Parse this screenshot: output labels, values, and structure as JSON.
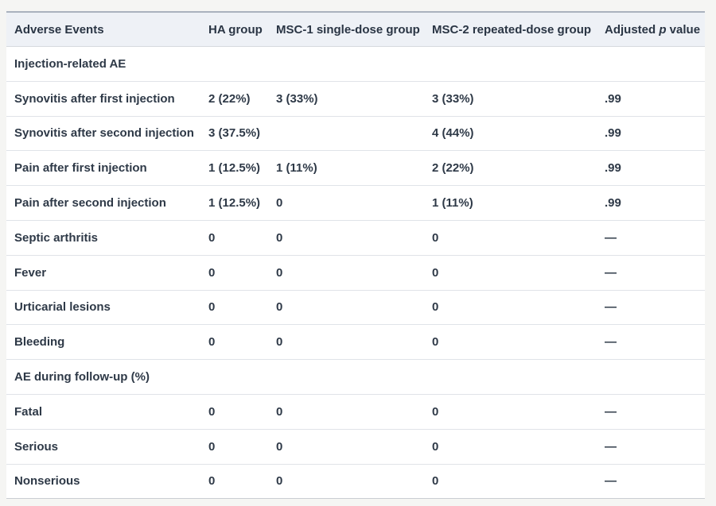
{
  "table": {
    "columns": [
      {
        "label": "Adverse Events"
      },
      {
        "label": "HA group"
      },
      {
        "label": "MSC-1 single-dose group"
      },
      {
        "label": "MSC-2 repeated-dose group"
      },
      {
        "label_pre": "Adjusted ",
        "label_italic": "p",
        "label_post": " value"
      }
    ],
    "rows": [
      {
        "type": "section",
        "label": "Injection-related AE",
        "values": [
          "",
          "",
          "",
          ""
        ]
      },
      {
        "type": "data",
        "label": "Synovitis after first injection",
        "values": [
          "2 (22%)",
          "3 (33%)",
          "3 (33%)",
          ".99"
        ]
      },
      {
        "type": "data",
        "label": "Synovitis after second injection",
        "values": [
          "3 (37.5%)",
          "",
          "4 (44%)",
          ".99"
        ]
      },
      {
        "type": "data",
        "label": "Pain after first injection",
        "values": [
          "1 (12.5%)",
          "1 (11%)",
          "2 (22%)",
          ".99"
        ]
      },
      {
        "type": "data",
        "label": "Pain after second injection",
        "values": [
          "1 (12.5%)",
          "0",
          "1 (11%)",
          ".99"
        ]
      },
      {
        "type": "data",
        "label": "Septic arthritis",
        "values": [
          "0",
          "0",
          "0",
          "—"
        ]
      },
      {
        "type": "data",
        "label": "Fever",
        "values": [
          "0",
          "0",
          "0",
          "—"
        ]
      },
      {
        "type": "data",
        "label": "Urticarial lesions",
        "values": [
          "0",
          "0",
          "0",
          "—"
        ]
      },
      {
        "type": "data",
        "label": "Bleeding",
        "values": [
          "0",
          "0",
          "0",
          "—"
        ]
      },
      {
        "type": "section",
        "label": "AE during follow-up (%)",
        "values": [
          "",
          "",
          "",
          ""
        ]
      },
      {
        "type": "data",
        "label": "Fatal",
        "values": [
          "0",
          "0",
          "0",
          "—"
        ]
      },
      {
        "type": "data",
        "label": "Serious",
        "values": [
          "0",
          "0",
          "0",
          "—"
        ]
      },
      {
        "type": "data",
        "label": "Nonserious",
        "values": [
          "0",
          "0",
          "0",
          "—"
        ]
      }
    ]
  },
  "colors": {
    "page_background": "#f5f5f3",
    "header_background": "#eef1f6",
    "row_background": "#ffffff",
    "text": "#2e3947",
    "top_border": "#aab2be",
    "row_separator": "#e0e3e8"
  }
}
